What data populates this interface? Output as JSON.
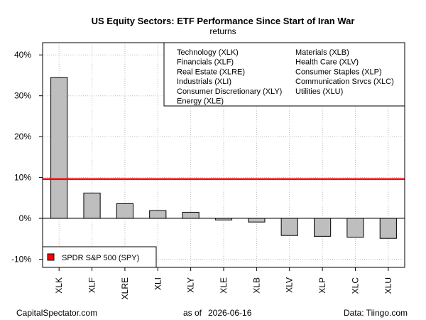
{
  "chart_data": {
    "type": "bar",
    "title": "US Equity Sectors: ETF Performance Since Start of Iran War",
    "subtitle": "returns",
    "categories": [
      "XLK",
      "XLF",
      "XLRE",
      "XLI",
      "XLY",
      "XLE",
      "XLB",
      "XLV",
      "XLP",
      "XLC",
      "XLU"
    ],
    "values": [
      34.5,
      6.2,
      3.6,
      1.9,
      1.5,
      -0.4,
      -0.9,
      -4.2,
      -4.4,
      -4.6,
      -4.9
    ],
    "ylim": [
      -12,
      43
    ],
    "yticks": [
      -10,
      0,
      10,
      20,
      30,
      40
    ],
    "ytick_labels": [
      "-10%",
      "0%",
      "10%",
      "20%",
      "30%",
      "40%"
    ],
    "grid": true,
    "bar_color": "#bebebe",
    "reference_line": {
      "name": "SPDR S&P 500 (SPY)",
      "value": 9.6,
      "color": "#ff0000"
    },
    "sector_legend": {
      "placement": "top-right",
      "entries": [
        "Technology (XLK)",
        "Financials (XLF)",
        "Real Estate (XLRE)",
        "Industrials (XLI)",
        "Consumer Discretionary (XLY)",
        "Energy (XLE)",
        "Materials (XLB)",
        "Health Care (XLV)",
        "Consumer Staples (XLP)",
        "Communication Srvcs (XLC)",
        "Utilities (XLU)"
      ]
    },
    "spy_legend": {
      "placement": "bottom-left",
      "label": "SPDR S&P 500 (SPY)"
    }
  },
  "footer": {
    "source_left": "CapitalSpectator.com",
    "date_prefix": "as of",
    "date": "2026-06-16",
    "source_right": "Data: Tiingo.com"
  }
}
